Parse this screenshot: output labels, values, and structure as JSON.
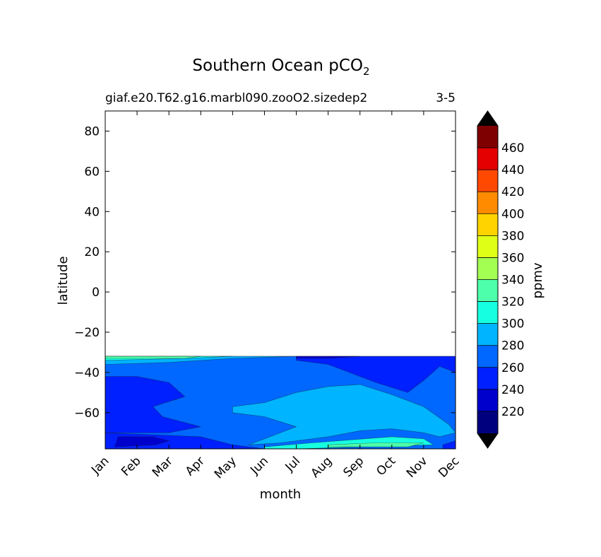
{
  "chart_data": {
    "type": "contour",
    "title": "Southern Ocean pCO",
    "title_subscript": "2",
    "subtitle_left": "giaf.e20.T62.g16.marbl090.zooO2.sizedep2",
    "subtitle_right": "3-5",
    "xlabel": "month",
    "ylabel": "latitude",
    "x_categories": [
      "Jan",
      "Feb",
      "Mar",
      "Apr",
      "May",
      "Jun",
      "Jul",
      "Aug",
      "Sep",
      "Oct",
      "Nov",
      "Dec"
    ],
    "xlim": [
      0,
      11
    ],
    "ylim": [
      -78,
      90
    ],
    "y_ticks": [
      80,
      60,
      40,
      20,
      0,
      -20,
      -40,
      -60
    ],
    "y_tick_labels": [
      "80",
      "60",
      "40",
      "20",
      "0",
      "−20",
      "−40",
      "−60"
    ],
    "data_lat_range": [
      -78,
      -32
    ],
    "colorbar": {
      "label": "ppmv",
      "levels": [
        200,
        220,
        240,
        260,
        280,
        300,
        320,
        340,
        360,
        380,
        400,
        420,
        440,
        460,
        480
      ],
      "tick_labels": [
        "220",
        "240",
        "260",
        "280",
        "300",
        "320",
        "340",
        "360",
        "380",
        "400",
        "420",
        "440",
        "460"
      ],
      "colors": [
        "#00007f",
        "#0000cd",
        "#0020ff",
        "#0068ff",
        "#00b4ff",
        "#16ffe1",
        "#4dffaa",
        "#a4ff53",
        "#e0ff16",
        "#ffd300",
        "#ff8c00",
        "#ff4800",
        "#e40000",
        "#7f0000"
      ],
      "under_color": "#000000",
      "over_color": "#000000"
    },
    "regions": [
      {
        "level": 260,
        "color": "#0068ff",
        "points": [
          [
            0,
            -32
          ],
          [
            11,
            -32
          ],
          [
            11,
            -78
          ],
          [
            0,
            -78
          ]
        ]
      },
      {
        "level": 240,
        "color": "#0020ff",
        "points": [
          [
            0,
            -42
          ],
          [
            1,
            -42
          ],
          [
            2,
            -45
          ],
          [
            2.5,
            -52
          ],
          [
            1.5,
            -57
          ],
          [
            1.8,
            -62
          ],
          [
            3,
            -67
          ],
          [
            2,
            -70
          ],
          [
            0,
            -70
          ]
        ]
      },
      {
        "level": 240,
        "color": "#0020ff",
        "points": [
          [
            6,
            -32
          ],
          [
            11,
            -32
          ],
          [
            11,
            -40
          ],
          [
            10.5,
            -37
          ],
          [
            10,
            -44
          ],
          [
            9.5,
            -50
          ],
          [
            8.5,
            -45
          ],
          [
            7,
            -36
          ],
          [
            6,
            -34
          ]
        ]
      },
      {
        "level": 240,
        "color": "#0020ff",
        "points": [
          [
            0,
            -70
          ],
          [
            3,
            -72
          ],
          [
            4,
            -76
          ],
          [
            5,
            -78
          ],
          [
            0,
            -78
          ]
        ]
      },
      {
        "level": 240,
        "color": "#0020ff",
        "points": [
          [
            10.6,
            -76
          ],
          [
            11,
            -74
          ],
          [
            11,
            -78
          ],
          [
            10.6,
            -78
          ]
        ]
      },
      {
        "level": 220,
        "color": "#0000cd",
        "points": [
          [
            0.4,
            -72
          ],
          [
            1.5,
            -72
          ],
          [
            2,
            -74
          ],
          [
            1.6,
            -76
          ],
          [
            0.3,
            -77
          ]
        ]
      },
      {
        "level": 220,
        "color": "#0000cd",
        "points": [
          [
            6,
            -32
          ],
          [
            8,
            -32
          ],
          [
            7,
            -33
          ],
          [
            6,
            -33
          ]
        ]
      },
      {
        "level": 280,
        "color": "#00b4ff",
        "points": [
          [
            4,
            -57
          ],
          [
            5,
            -55
          ],
          [
            6,
            -50
          ],
          [
            7,
            -47
          ],
          [
            8,
            -46
          ],
          [
            9,
            -51
          ],
          [
            10,
            -57
          ],
          [
            10.8,
            -66
          ],
          [
            11,
            -70
          ],
          [
            10.5,
            -72
          ],
          [
            10,
            -70
          ],
          [
            9,
            -68
          ],
          [
            8,
            -69
          ],
          [
            7,
            -72
          ],
          [
            5.5,
            -75
          ],
          [
            4.5,
            -76
          ],
          [
            5,
            -73
          ],
          [
            6,
            -67
          ],
          [
            5,
            -62
          ],
          [
            4,
            -60
          ]
        ]
      },
      {
        "level": 280,
        "color": "#00b4ff",
        "points": [
          [
            0,
            -32
          ],
          [
            6,
            -32
          ],
          [
            4,
            -33
          ],
          [
            2,
            -35
          ],
          [
            0,
            -36
          ]
        ]
      },
      {
        "level": 300,
        "color": "#16ffe1",
        "points": [
          [
            0,
            -32
          ],
          [
            4,
            -32
          ],
          [
            2.5,
            -33
          ],
          [
            0,
            -34
          ]
        ]
      },
      {
        "level": 300,
        "color": "#16ffe1",
        "points": [
          [
            5,
            -77
          ],
          [
            6.5,
            -75
          ],
          [
            9,
            -72
          ],
          [
            10,
            -73
          ],
          [
            10.3,
            -76
          ],
          [
            8,
            -77
          ],
          [
            6,
            -78
          ],
          [
            5,
            -78
          ]
        ]
      },
      {
        "level": 320,
        "color": "#4dffaa",
        "points": [
          [
            0,
            -32
          ],
          [
            3,
            -32
          ],
          [
            2.5,
            -33
          ],
          [
            0,
            -33
          ]
        ]
      },
      {
        "level": 320,
        "color": "#4dffaa",
        "points": [
          [
            7,
            -76
          ],
          [
            8.5,
            -75
          ],
          [
            10,
            -75
          ],
          [
            9.5,
            -77
          ],
          [
            8,
            -77
          ],
          [
            7,
            -77
          ]
        ]
      }
    ]
  }
}
